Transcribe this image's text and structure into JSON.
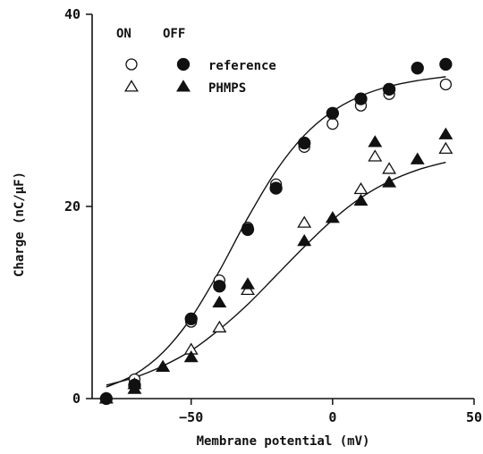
{
  "chart_data": {
    "type": "scatter",
    "title": "",
    "xlabel": "Membrane potential (mV)",
    "ylabel": "Charge (nC/μF)",
    "xlim": [
      -85,
      50
    ],
    "ylim": [
      0,
      40
    ],
    "xticks": [
      -50,
      0,
      50
    ],
    "yticks": [
      0,
      20,
      40
    ],
    "grid": false,
    "legend": {
      "placement": "top-left",
      "column_headers": [
        "ON",
        "OFF"
      ],
      "rows": [
        "reference",
        "PHMPS"
      ]
    },
    "series": [
      {
        "name": "reference ON",
        "marker": "circle-open",
        "x": [
          -80,
          -70,
          -50,
          -40,
          -30,
          -20,
          -10,
          0,
          10,
          20,
          40
        ],
        "y": [
          0.0,
          2.0,
          8.0,
          12.3,
          17.8,
          22.3,
          26.2,
          28.6,
          30.5,
          31.7,
          32.7
        ]
      },
      {
        "name": "reference OFF",
        "marker": "circle-filled",
        "x": [
          -80,
          -70,
          -50,
          -40,
          -30,
          -20,
          -10,
          0,
          10,
          20,
          30,
          40
        ],
        "y": [
          0.0,
          1.4,
          8.3,
          11.7,
          17.6,
          21.9,
          26.6,
          29.7,
          31.2,
          32.2,
          34.4,
          34.8
        ]
      },
      {
        "name": "PHMPS ON",
        "marker": "triangle-open",
        "x": [
          -70,
          -60,
          -50,
          -40,
          -30,
          -10,
          10,
          15,
          20,
          40
        ],
        "y": [
          1.5,
          3.3,
          5.1,
          7.4,
          11.3,
          18.3,
          21.8,
          25.2,
          23.9,
          26.0
        ]
      },
      {
        "name": "PHMPS OFF",
        "marker": "triangle-filled",
        "x": [
          -80,
          -70,
          -60,
          -50,
          -40,
          -30,
          -10,
          0,
          10,
          15,
          20,
          30,
          40
        ],
        "y": [
          0.0,
          1.0,
          3.3,
          4.3,
          10.0,
          11.9,
          16.4,
          18.8,
          20.6,
          26.7,
          22.5,
          24.9,
          27.5
        ]
      }
    ],
    "fits": [
      {
        "name": "reference fit",
        "x": [
          -80,
          -70,
          -60,
          -50,
          -40,
          -30,
          -20,
          -10,
          0,
          10,
          20,
          30,
          40
        ],
        "y": [
          1.2,
          2.5,
          4.8,
          8.4,
          13.3,
          18.8,
          23.7,
          27.4,
          29.9,
          31.5,
          32.5,
          33.1,
          33.5
        ]
      },
      {
        "name": "PHMPS fit",
        "x": [
          -80,
          -70,
          -60,
          -50,
          -40,
          -30,
          -20,
          -10,
          0,
          10,
          20,
          30,
          40
        ],
        "y": [
          1.4,
          2.2,
          3.4,
          5.0,
          7.2,
          9.8,
          12.8,
          15.8,
          18.6,
          20.9,
          22.6,
          23.8,
          24.6
        ]
      }
    ]
  }
}
